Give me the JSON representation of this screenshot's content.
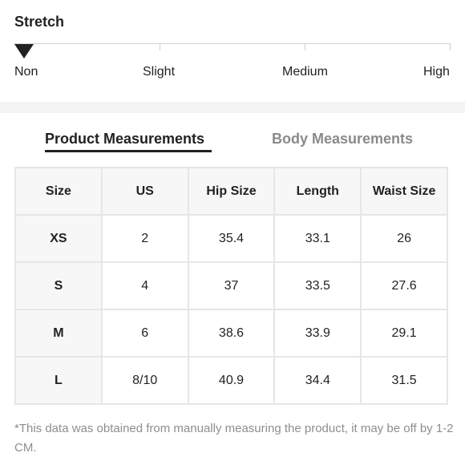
{
  "stretch": {
    "title": "Stretch",
    "levels": [
      "Non",
      "Slight",
      "Medium",
      "High"
    ],
    "selected_level": "Non"
  },
  "tabs": {
    "product": "Product Measurements",
    "body": "Body Measurements",
    "active": "Product Measurements"
  },
  "table": {
    "headers": [
      "Size",
      "US",
      "Hip Size",
      "Length",
      "Waist Size"
    ],
    "rows": [
      [
        "XS",
        "2",
        "35.4",
        "33.1",
        "26"
      ],
      [
        "S",
        "4",
        "37",
        "33.5",
        "27.6"
      ],
      [
        "M",
        "6",
        "38.6",
        "33.9",
        "29.1"
      ],
      [
        "L",
        "8/10",
        "40.9",
        "34.4",
        "31.5"
      ]
    ]
  },
  "footnote": "*This data was obtained from manually measuring the product, it may be off by 1-2 CM.",
  "colors": {
    "text": "#222222",
    "muted": "#8a8a8a",
    "border": "#e6e6e6",
    "header_bg": "#f7f7f7"
  }
}
